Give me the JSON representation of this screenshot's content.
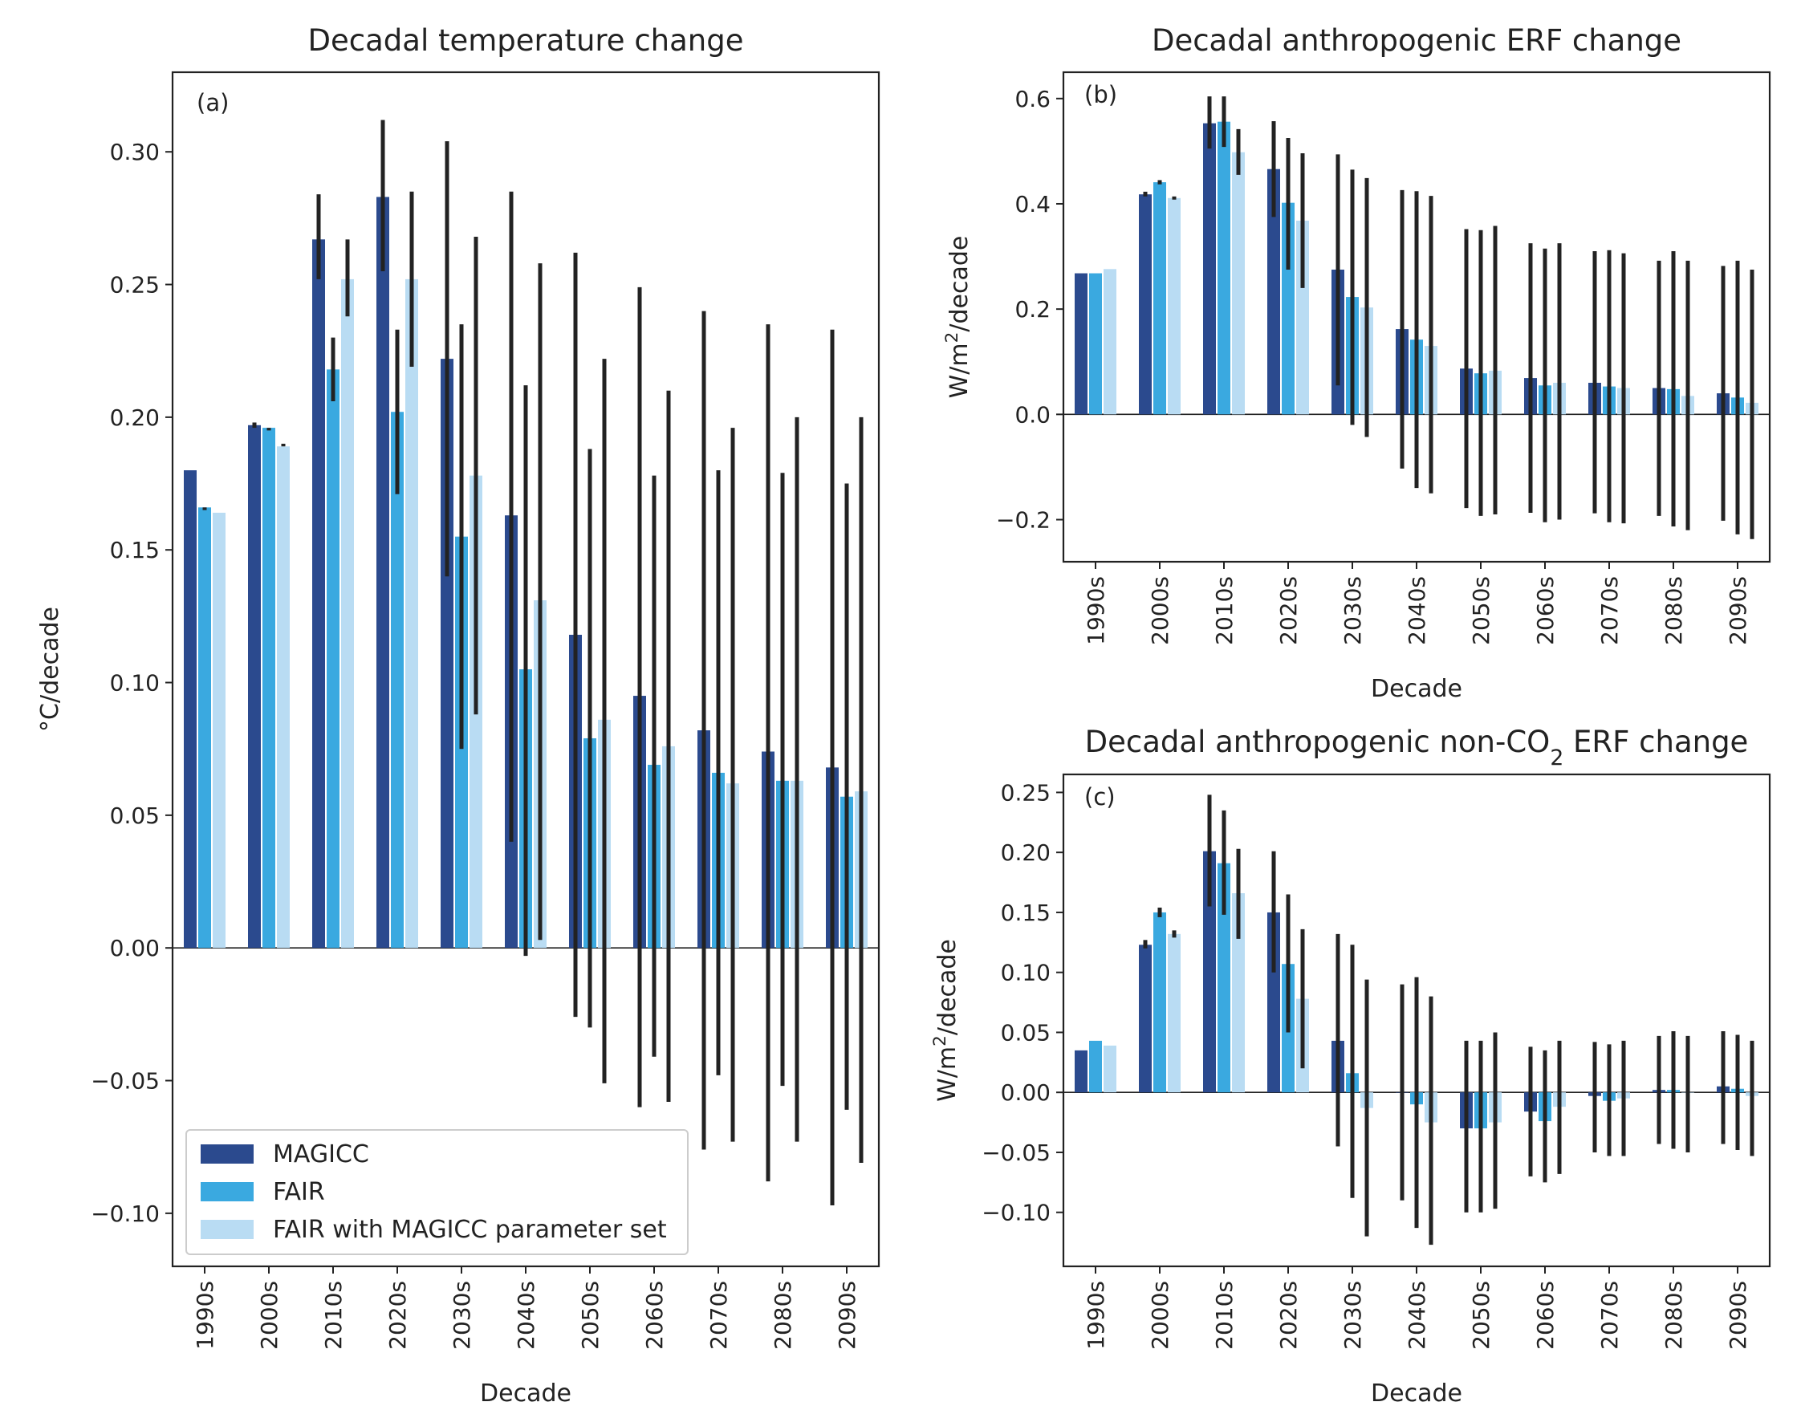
{
  "figure": {
    "colors": {
      "MAGICC": "#2b4a8e",
      "FAIR": "#3aa9e0",
      "FAIR_MAGICC": "#b9dcf3",
      "error": "#222222"
    }
  },
  "chart_data": [
    {
      "panel_label": "(a)",
      "type": "bar",
      "title": "Decadal temperature change",
      "title_parts": [
        "Decadal temperature change"
      ],
      "xlabel": "Decade",
      "ylabel": "°C/decade",
      "ylabel_parts": [
        "°C/decade"
      ],
      "ylim": [
        -0.12,
        0.33
      ],
      "yticks": [
        -0.1,
        -0.05,
        0.0,
        0.05,
        0.1,
        0.15,
        0.2,
        0.25,
        0.3
      ],
      "ytick_labels": [
        "−0.10",
        "−0.05",
        "0.00",
        "0.05",
        "0.10",
        "0.15",
        "0.20",
        "0.25",
        "0.30"
      ],
      "categories": [
        "1990s",
        "2000s",
        "2010s",
        "2020s",
        "2030s",
        "2040s",
        "2050s",
        "2060s",
        "2070s",
        "2080s",
        "2090s"
      ],
      "legend": {
        "placement": "lower-left",
        "entries": [
          "MAGICC",
          "FAIR",
          "FAIR with MAGICC parameter set"
        ]
      },
      "series": [
        {
          "name": "MAGICC",
          "values": [
            0.18,
            0.197,
            0.267,
            0.283,
            0.222,
            0.163,
            0.118,
            0.095,
            0.082,
            0.074,
            0.068
          ],
          "lo": [
            0.18,
            0.196,
            0.252,
            0.255,
            0.14,
            0.04,
            -0.026,
            -0.06,
            -0.076,
            -0.088,
            -0.097
          ],
          "hi": [
            0.18,
            0.198,
            0.284,
            0.312,
            0.304,
            0.285,
            0.262,
            0.249,
            0.24,
            0.235,
            0.233
          ]
        },
        {
          "name": "FAIR",
          "values": [
            0.166,
            0.196,
            0.218,
            0.202,
            0.155,
            0.105,
            0.079,
            0.069,
            0.066,
            0.063,
            0.057
          ],
          "lo": [
            0.165,
            0.195,
            0.206,
            0.171,
            0.075,
            -0.003,
            -0.03,
            -0.041,
            -0.048,
            -0.052,
            -0.061
          ],
          "hi": [
            0.166,
            0.196,
            0.23,
            0.233,
            0.235,
            0.212,
            0.188,
            0.178,
            0.18,
            0.179,
            0.175
          ]
        },
        {
          "name": "FAIR with MAGICC parameter set",
          "values": [
            0.164,
            0.189,
            0.252,
            0.252,
            0.178,
            0.131,
            0.086,
            0.076,
            0.062,
            0.063,
            0.059
          ],
          "lo": [
            0.164,
            0.189,
            0.238,
            0.219,
            0.088,
            0.003,
            -0.051,
            -0.058,
            -0.073,
            -0.073,
            -0.081
          ],
          "hi": [
            0.164,
            0.19,
            0.267,
            0.285,
            0.268,
            0.258,
            0.222,
            0.21,
            0.196,
            0.2,
            0.2
          ]
        }
      ]
    },
    {
      "panel_label": "(b)",
      "type": "bar",
      "title": "Decadal anthropogenic ERF change",
      "title_parts": [
        "Decadal anthropogenic ERF change"
      ],
      "xlabel": "Decade",
      "ylabel": "W/m2/decade",
      "ylabel_parts": [
        "W/m",
        "2",
        "/decade"
      ],
      "ylim": [
        -0.28,
        0.65
      ],
      "yticks": [
        -0.2,
        0.0,
        0.2,
        0.4,
        0.6
      ],
      "ytick_labels": [
        "−0.2",
        "0.0",
        "0.2",
        "0.4",
        "0.6"
      ],
      "categories": [
        "1990s",
        "2000s",
        "2010s",
        "2020s",
        "2030s",
        "2040s",
        "2050s",
        "2060s",
        "2070s",
        "2080s",
        "2090s"
      ],
      "series": [
        {
          "name": "MAGICC",
          "values": [
            0.268,
            0.418,
            0.553,
            0.466,
            0.275,
            0.162,
            0.087,
            0.069,
            0.06,
            0.05,
            0.04
          ],
          "lo": [
            0.268,
            0.414,
            0.505,
            0.375,
            0.055,
            -0.103,
            -0.178,
            -0.187,
            -0.188,
            -0.193,
            -0.202
          ],
          "hi": [
            0.268,
            0.423,
            0.604,
            0.557,
            0.494,
            0.426,
            0.352,
            0.325,
            0.31,
            0.292,
            0.282
          ]
        },
        {
          "name": "FAIR",
          "values": [
            0.268,
            0.441,
            0.556,
            0.402,
            0.223,
            0.142,
            0.078,
            0.055,
            0.053,
            0.048,
            0.032
          ],
          "lo": [
            0.268,
            0.437,
            0.508,
            0.275,
            -0.02,
            -0.14,
            -0.193,
            -0.205,
            -0.205,
            -0.213,
            -0.228
          ],
          "hi": [
            0.268,
            0.445,
            0.604,
            0.525,
            0.465,
            0.424,
            0.35,
            0.315,
            0.312,
            0.31,
            0.292
          ]
        },
        {
          "name": "FAIR with MAGICC parameter set",
          "values": [
            0.276,
            0.411,
            0.498,
            0.368,
            0.203,
            0.13,
            0.083,
            0.06,
            0.05,
            0.035,
            0.022
          ],
          "lo": [
            0.276,
            0.408,
            0.455,
            0.24,
            -0.043,
            -0.15,
            -0.19,
            -0.2,
            -0.207,
            -0.22,
            -0.237
          ],
          "hi": [
            0.276,
            0.414,
            0.542,
            0.496,
            0.449,
            0.415,
            0.358,
            0.325,
            0.306,
            0.292,
            0.275
          ]
        }
      ]
    },
    {
      "panel_label": "(c)",
      "type": "bar",
      "title": "Decadal anthropogenic non-CO2 ERF change",
      "title_parts": [
        "Decadal anthropogenic non-CO",
        "2",
        " ERF change"
      ],
      "xlabel": "Decade",
      "ylabel": "W/m2/decade",
      "ylabel_parts": [
        "W/m",
        "2",
        "/decade"
      ],
      "ylim": [
        -0.145,
        0.265
      ],
      "yticks": [
        -0.1,
        -0.05,
        0.0,
        0.05,
        0.1,
        0.15,
        0.2,
        0.25
      ],
      "ytick_labels": [
        "−0.10",
        "−0.05",
        "0.00",
        "0.05",
        "0.10",
        "0.15",
        "0.20",
        "0.25"
      ],
      "categories": [
        "1990s",
        "2000s",
        "2010s",
        "2020s",
        "2030s",
        "2040s",
        "2050s",
        "2060s",
        "2070s",
        "2080s",
        "2090s"
      ],
      "series": [
        {
          "name": "MAGICC",
          "values": [
            0.035,
            0.123,
            0.201,
            0.15,
            0.043,
            0.0,
            -0.03,
            -0.016,
            -0.003,
            0.002,
            0.005
          ],
          "lo": [
            0.035,
            0.12,
            0.155,
            0.1,
            -0.045,
            -0.09,
            -0.1,
            -0.07,
            -0.05,
            -0.043,
            -0.043
          ],
          "hi": [
            0.035,
            0.127,
            0.248,
            0.201,
            0.132,
            0.09,
            0.043,
            0.038,
            0.042,
            0.047,
            0.051
          ]
        },
        {
          "name": "FAIR",
          "values": [
            0.043,
            0.15,
            0.191,
            0.107,
            0.016,
            -0.01,
            -0.03,
            -0.024,
            -0.007,
            0.002,
            0.003
          ],
          "lo": [
            0.043,
            0.146,
            0.148,
            0.05,
            -0.088,
            -0.113,
            -0.1,
            -0.075,
            -0.053,
            -0.047,
            -0.048
          ],
          "hi": [
            0.043,
            0.154,
            0.235,
            0.165,
            0.123,
            0.096,
            0.043,
            0.035,
            0.04,
            0.051,
            0.048
          ]
        },
        {
          "name": "FAIR with MAGICC parameter set",
          "values": [
            0.039,
            0.132,
            0.166,
            0.078,
            -0.013,
            -0.025,
            -0.025,
            -0.012,
            -0.005,
            0.0,
            -0.003
          ],
          "lo": [
            0.039,
            0.129,
            0.128,
            0.02,
            -0.12,
            -0.127,
            -0.097,
            -0.068,
            -0.053,
            -0.05,
            -0.053
          ],
          "hi": [
            0.039,
            0.135,
            0.203,
            0.136,
            0.094,
            0.08,
            0.05,
            0.043,
            0.043,
            0.047,
            0.043
          ]
        }
      ]
    }
  ]
}
